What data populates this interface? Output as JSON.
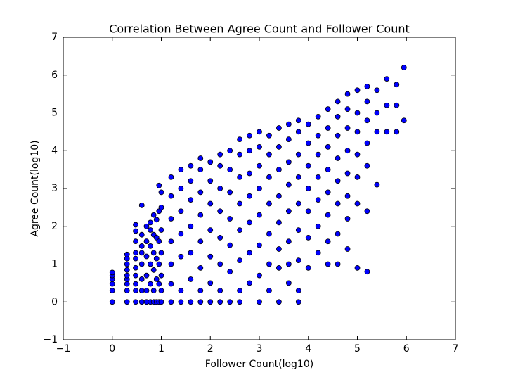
{
  "chart_data": {
    "type": "scatter",
    "title": "Correlation Between Agree Count and Follower Count",
    "x_label": "Follower Count(log10)",
    "y_label": "Agree Count(log10)",
    "color": "#0000ff",
    "xlim": [
      -1,
      7
    ],
    "ylim": [
      -1,
      7
    ],
    "xticks": [
      {
        "value": -1,
        "label": "−1"
      },
      0,
      1,
      2,
      3,
      4,
      5,
      6,
      7
    ],
    "yticks": [
      {
        "value": -1,
        "label": "−1"
      },
      0,
      1,
      2,
      3,
      4,
      5,
      6,
      7
    ],
    "x": [
      0,
      0,
      0,
      0,
      0,
      0,
      0.301,
      0.301,
      0.301,
      0.301,
      0.301,
      0.301,
      0.301,
      0.301,
      0.301,
      0.477,
      0.477,
      0.477,
      0.477,
      0.477,
      0.477,
      0.477,
      0.477,
      0.477,
      0.477,
      0.602,
      0.602,
      0.602,
      0.602,
      0.602,
      0.602,
      0.602,
      0.602,
      0.699,
      0.699,
      0.699,
      0.699,
      0.699,
      0.699,
      0.778,
      0.778,
      0.778,
      0.778,
      0.778,
      0.778,
      0.845,
      0.845,
      0.845,
      0.845,
      0.845,
      0.845,
      0.903,
      0.903,
      0.903,
      0.903,
      0.903,
      0.954,
      0.954,
      0.954,
      0.954,
      0.954,
      0.954,
      1,
      1,
      1,
      1,
      1,
      1,
      1,
      1.2,
      1.2,
      1.2,
      1.2,
      1.2,
      1.2,
      1.2,
      1.4,
      1.4,
      1.4,
      1.4,
      1.4,
      1.4,
      1.4,
      1.6,
      1.6,
      1.6,
      1.6,
      1.6,
      1.6,
      1.6,
      1.8,
      1.8,
      1.8,
      1.8,
      1.8,
      1.8,
      1.8,
      1.8,
      2.0,
      2.0,
      2.0,
      2.0,
      2.0,
      2.0,
      2.0,
      2.2,
      2.2,
      2.2,
      2.2,
      2.2,
      2.2,
      2.2,
      2.2,
      2.4,
      2.4,
      2.4,
      2.4,
      2.4,
      2.4,
      2.4,
      2.6,
      2.6,
      2.6,
      2.6,
      2.6,
      2.6,
      2.6,
      2.6,
      2.8,
      2.8,
      2.8,
      2.8,
      2.8,
      2.8,
      2.8,
      3.0,
      3.0,
      3.0,
      3.0,
      3.0,
      3.0,
      3.0,
      3.0,
      3.2,
      3.2,
      3.2,
      3.2,
      3.2,
      3.2,
      3.2,
      3.4,
      3.4,
      3.4,
      3.4,
      3.4,
      3.4,
      3.4,
      3.4,
      3.6,
      3.6,
      3.6,
      3.6,
      3.6,
      3.6,
      3.6,
      3.6,
      3.8,
      3.8,
      3.8,
      3.8,
      3.8,
      3.8,
      3.8,
      3.8,
      3.8,
      4.0,
      4.0,
      4.0,
      4.0,
      4.0,
      4.0,
      4.0,
      4.2,
      4.2,
      4.2,
      4.2,
      4.2,
      4.2,
      4.2,
      4.4,
      4.4,
      4.4,
      4.4,
      4.4,
      4.4,
      4.4,
      4.4,
      4.6,
      4.6,
      4.6,
      4.6,
      4.6,
      4.6,
      4.6,
      4.6,
      4.8,
      4.8,
      4.8,
      4.8,
      4.8,
      4.8,
      4.8,
      4.8,
      5.0,
      5.0,
      5.0,
      5.0,
      5.0,
      5.0,
      5.0,
      5.2,
      5.2,
      5.2,
      5.2,
      5.2,
      5.2,
      5.2,
      5.4,
      5.4,
      5.4,
      5.4,
      5.6,
      5.6,
      5.6,
      5.8,
      5.8,
      5.8,
      5.95,
      5.95
    ],
    "values": [
      0,
      0.301,
      0.477,
      0.602,
      0.699,
      0.778,
      0,
      0.301,
      0.477,
      0.602,
      0.699,
      0.845,
      1,
      1.146,
      1.255,
      0,
      0.301,
      0.477,
      0.699,
      0.903,
      1.146,
      1.301,
      1.602,
      1.875,
      2.041,
      0,
      0.301,
      0.602,
      1,
      1.301,
      1.477,
      1.778,
      2.556,
      0,
      0.301,
      0.699,
      1.204,
      1.602,
      2,
      0,
      0.477,
      1,
      1.477,
      1.903,
      2.1,
      0,
      0.301,
      0.845,
      1.301,
      1.778,
      2.301,
      0,
      0.602,
      1.146,
      1.699,
      2.176,
      0,
      0.477,
      1,
      1.602,
      2.4,
      3.079,
      0,
      0.301,
      0.699,
      1.301,
      1.903,
      2.5,
      2.9,
      0,
      0.477,
      1,
      1.6,
      2.2,
      2.8,
      3.3,
      0,
      0.3,
      1.2,
      1.8,
      2.4,
      3.0,
      3.5,
      0,
      0.6,
      1.3,
      2.0,
      2.7,
      3.2,
      3.6,
      0,
      0.3,
      0.9,
      1.6,
      2.3,
      2.9,
      3.5,
      3.8,
      0,
      0.5,
      1.2,
      1.9,
      2.6,
      3.2,
      3.7,
      0,
      0.3,
      1.0,
      1.7,
      2.4,
      3.0,
      3.6,
      3.9,
      0,
      0.8,
      1.5,
      2.2,
      2.9,
      3.5,
      4.0,
      0,
      0.3,
      1.1,
      1.9,
      2.6,
      3.3,
      3.9,
      4.3,
      0.5,
      1.3,
      2.1,
      2.8,
      3.4,
      4.0,
      4.4,
      0,
      0.7,
      1.5,
      2.3,
      3.0,
      3.6,
      4.1,
      4.5,
      0.3,
      1.0,
      1.8,
      2.6,
      3.3,
      3.9,
      4.4,
      0,
      0.9,
      1.4,
      2.1,
      2.8,
      3.5,
      4.1,
      4.6,
      0.5,
      1.0,
      1.6,
      2.4,
      3.1,
      3.7,
      4.3,
      4.7,
      0,
      0.3,
      1.1,
      1.9,
      2.6,
      3.3,
      3.9,
      4.5,
      4.8,
      0.9,
      1.7,
      2.4,
      3.0,
      3.6,
      4.2,
      4.7,
      1.3,
      2.0,
      2.7,
      3.3,
      3.9,
      4.4,
      4.9,
      1.0,
      1.6,
      2.3,
      2.9,
      3.5,
      4.1,
      4.6,
      5.1,
      1.0,
      1.8,
      2.6,
      3.2,
      3.8,
      4.4,
      4.9,
      5.3,
      1.4,
      2.2,
      2.8,
      3.4,
      4.0,
      4.6,
      5.1,
      5.5,
      0.9,
      2.6,
      3.3,
      3.9,
      4.5,
      5.0,
      5.6,
      0.8,
      2.4,
      3.6,
      4.2,
      4.8,
      5.3,
      5.7,
      3.1,
      4.5,
      5.0,
      5.6,
      4.5,
      5.2,
      5.9,
      4.5,
      5.2,
      5.75,
      4.8,
      6.2
    ]
  }
}
